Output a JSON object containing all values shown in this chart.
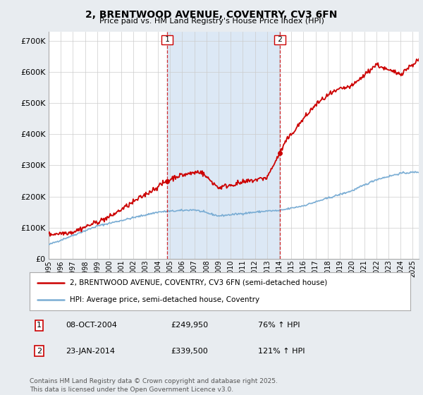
{
  "title": "2, BRENTWOOD AVENUE, COVENTRY, CV3 6FN",
  "subtitle": "Price paid vs. HM Land Registry's House Price Index (HPI)",
  "legend_line1": "2, BRENTWOOD AVENUE, COVENTRY, CV3 6FN (semi-detached house)",
  "legend_line2": "HPI: Average price, semi-detached house, Coventry",
  "footnote": "Contains HM Land Registry data © Crown copyright and database right 2025.\nThis data is licensed under the Open Government Licence v3.0.",
  "transactions": [
    {
      "label": "1",
      "date": "08-OCT-2004",
      "price": "£249,950",
      "hpi": "76% ↑ HPI"
    },
    {
      "label": "2",
      "date": "23-JAN-2014",
      "price": "£339,500",
      "hpi": "121% ↑ HPI"
    }
  ],
  "marker1_year": 2004.77,
  "marker2_year": 2014.06,
  "ylim": [
    0,
    730000
  ],
  "yticks": [
    0,
    100000,
    200000,
    300000,
    400000,
    500000,
    600000,
    700000
  ],
  "ytick_labels": [
    "£0",
    "£100K",
    "£200K",
    "£300K",
    "£400K",
    "£500K",
    "£600K",
    "£700K"
  ],
  "fig_bg": "#e8ecf0",
  "plot_bg": "#ffffff",
  "shade_between": "#dce8f5",
  "red_color": "#cc0000",
  "blue_color": "#7aadd4",
  "grid_color": "#cccccc",
  "xlim_left": 1995,
  "xlim_right": 2025.5
}
